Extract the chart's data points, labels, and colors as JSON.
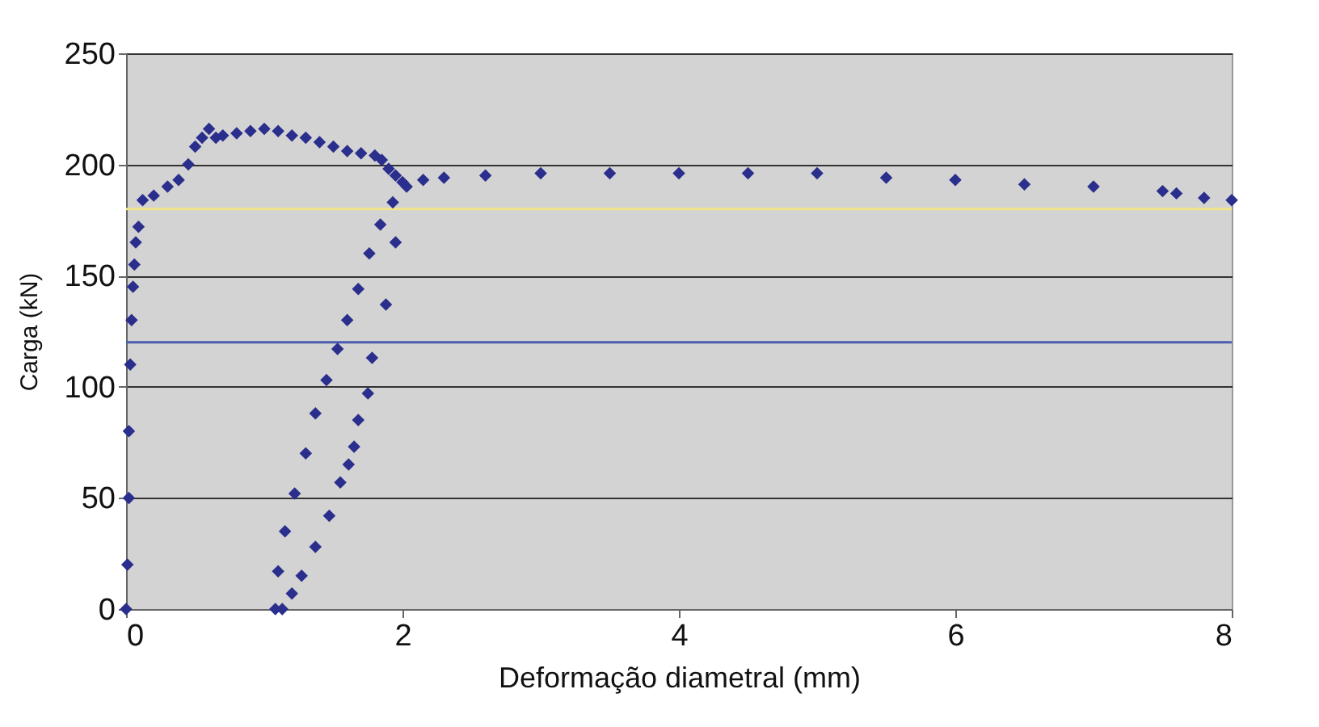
{
  "chart_data": {
    "type": "scatter",
    "xlabel": "Deformação diametral (mm)",
    "ylabel": "Carga (kN)",
    "xlim": [
      0,
      8
    ],
    "ylim": [
      0,
      250
    ],
    "xticks": [
      0,
      2,
      4,
      6,
      8
    ],
    "yticks": [
      0,
      50,
      100,
      150,
      200,
      250
    ],
    "grid": "y",
    "marker": "diamond",
    "series": [
      {
        "color": "#2a2e8c",
        "x": [
          0,
          0.01,
          0.02,
          0.02,
          0.03,
          0.04,
          0.05,
          0.06,
          0.07,
          0.09,
          0.12,
          0.2,
          0.3,
          0.38,
          0.45,
          0.5,
          0.55,
          0.6,
          0.65,
          0.7,
          0.8,
          0.9,
          1.0,
          1.1,
          1.2,
          1.3,
          1.4,
          1.5,
          1.6,
          1.7,
          1.8,
          1.85,
          1.9,
          1.95,
          2.0,
          1.95,
          1.88,
          1.78,
          1.75,
          1.68,
          1.65,
          1.61,
          1.55,
          1.47,
          1.37,
          1.27,
          1.2,
          1.13,
          1.08,
          1.1,
          1.15,
          1.22,
          1.3,
          1.37,
          1.45,
          1.53,
          1.6,
          1.68,
          1.76,
          1.84,
          1.93,
          2.03,
          2.15,
          2.3,
          2.6,
          3.0,
          3.5,
          4.0,
          4.5,
          5.0,
          5.5,
          6.0,
          6.5,
          7.0,
          7.5,
          7.6,
          7.8,
          8.0
        ],
        "values": [
          0,
          20,
          50,
          80,
          110,
          130,
          145,
          155,
          165,
          172,
          184,
          186,
          190,
          193,
          200,
          208,
          212,
          216,
          212,
          213,
          214,
          215,
          216,
          215,
          213,
          212,
          210,
          208,
          206,
          205,
          204,
          202,
          198,
          195,
          192,
          165,
          137,
          113,
          97,
          85,
          73,
          65,
          57,
          42,
          28,
          15,
          7,
          0,
          0,
          17,
          35,
          52,
          70,
          88,
          103,
          117,
          130,
          144,
          160,
          173,
          183,
          190,
          193,
          194,
          195,
          196,
          196,
          196,
          196,
          196,
          194,
          193,
          191,
          190,
          188,
          187,
          185,
          184
        ]
      }
    ],
    "ref_lines": [
      {
        "axis": "y",
        "value": 180,
        "color": "#f0e58a"
      },
      {
        "axis": "y",
        "value": 120,
        "color": "#4a5db0"
      }
    ]
  }
}
